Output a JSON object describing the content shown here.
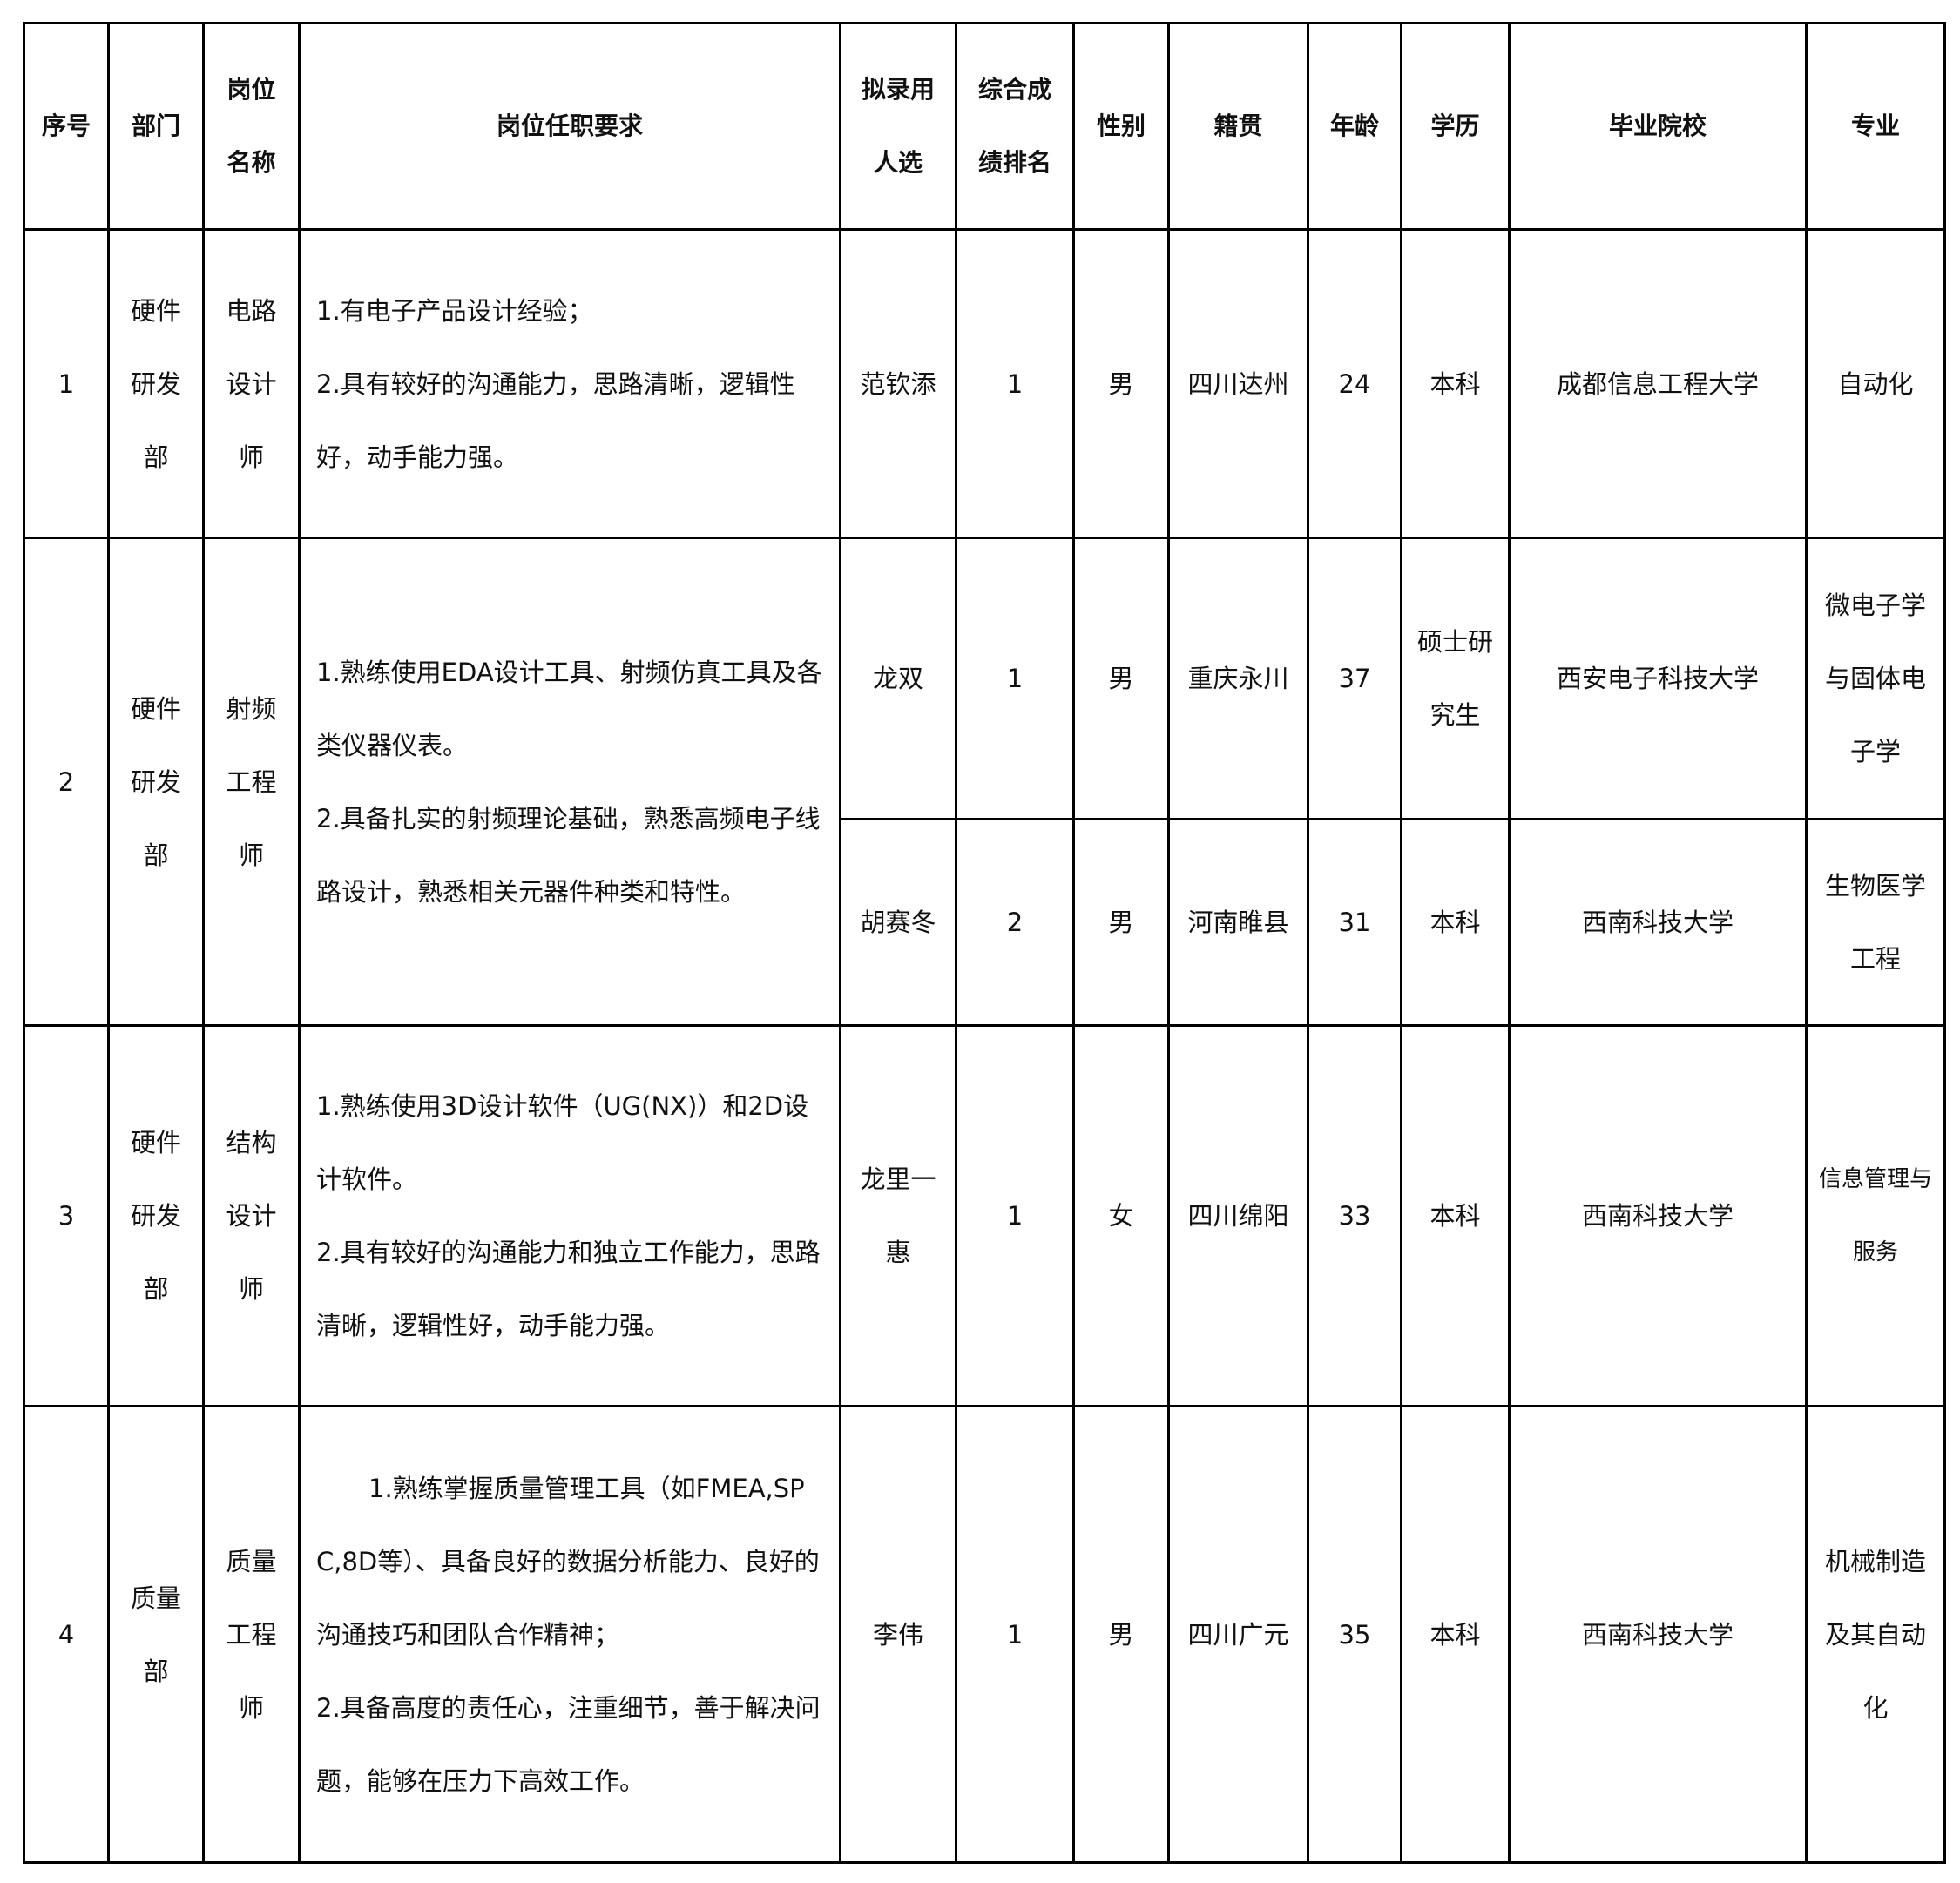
{
  "headers": [
    "序号",
    "部门",
    "岗位名称",
    "岗位任职要求",
    "拟录用人选",
    "综合成绩排名",
    "性别",
    "籍贯",
    "年龄",
    "学历",
    "毕业院校",
    "专业"
  ],
  "positions": [
    {
      "no": "1",
      "dept": "硬件研发部",
      "title": "电路设计师",
      "requirements": [
        "1.有电子产品设计经验；",
        "2.具有较好的沟通能力，思路清晰，逻辑性好，动手能力强。"
      ],
      "candidates": [
        {
          "name": "范钦添",
          "rank": "1",
          "gender": "男",
          "origin": "四川达州",
          "age": "24",
          "education": "本科",
          "school": "成都信息工程大学",
          "major": "自动化"
        }
      ]
    },
    {
      "no": "2",
      "dept": "硬件研发部",
      "title": "射频工程师",
      "requirements": [
        "1.熟练使用EDA设计工具、射频仿真工具及各类仪器仪表。",
        "2.具备扎实的射频理论基础，熟悉高频电子线路设计，熟悉相关元器件种类和特性。"
      ],
      "candidates": [
        {
          "name": "龙双",
          "rank": "1",
          "gender": "男",
          "origin": "重庆永川",
          "age": "37",
          "education": "硕士研究生",
          "school": "西安电子科技大学",
          "major": "微电子学与固体电子学"
        },
        {
          "name": "胡赛冬",
          "rank": "2",
          "gender": "男",
          "origin": "河南睢县",
          "age": "31",
          "education": "本科",
          "school": "西南科技大学",
          "major": "生物医学工程"
        }
      ]
    },
    {
      "no": "3",
      "dept": "硬件研发部",
      "title": "结构设计师",
      "requirements": [
        "1.熟练使用3D设计软件（UG(NX)）和2D设计软件。",
        "2.具有较好的沟通能力和独立工作能力，思路清晰，逻辑性好，动手能力强。"
      ],
      "candidates": [
        {
          "name": "龙里一惠",
          "rank": "1",
          "gender": "女",
          "origin": "四川绵阳",
          "age": "33",
          "education": "本科",
          "school": "西南科技大学",
          "major": "信息管理与服务"
        }
      ]
    },
    {
      "no": "4",
      "dept": "质量部",
      "title": "质量工程师",
      "requirements": [
        "1.熟练掌握质量管理工具（如FMEA,SPC,8D等）、具备良好的数据分析能力、良好的沟通技巧和团队合作精神；",
        "2.具备高度的责任心，注重细节，善于解决问题，能够在压力下高效工作。"
      ],
      "candidates": [
        {
          "name": "李伟",
          "rank": "1",
          "gender": "男",
          "origin": "四川广元",
          "age": "35",
          "education": "本科",
          "school": "西南科技大学",
          "major": "机械制造及其自动化"
        }
      ]
    }
  ]
}
